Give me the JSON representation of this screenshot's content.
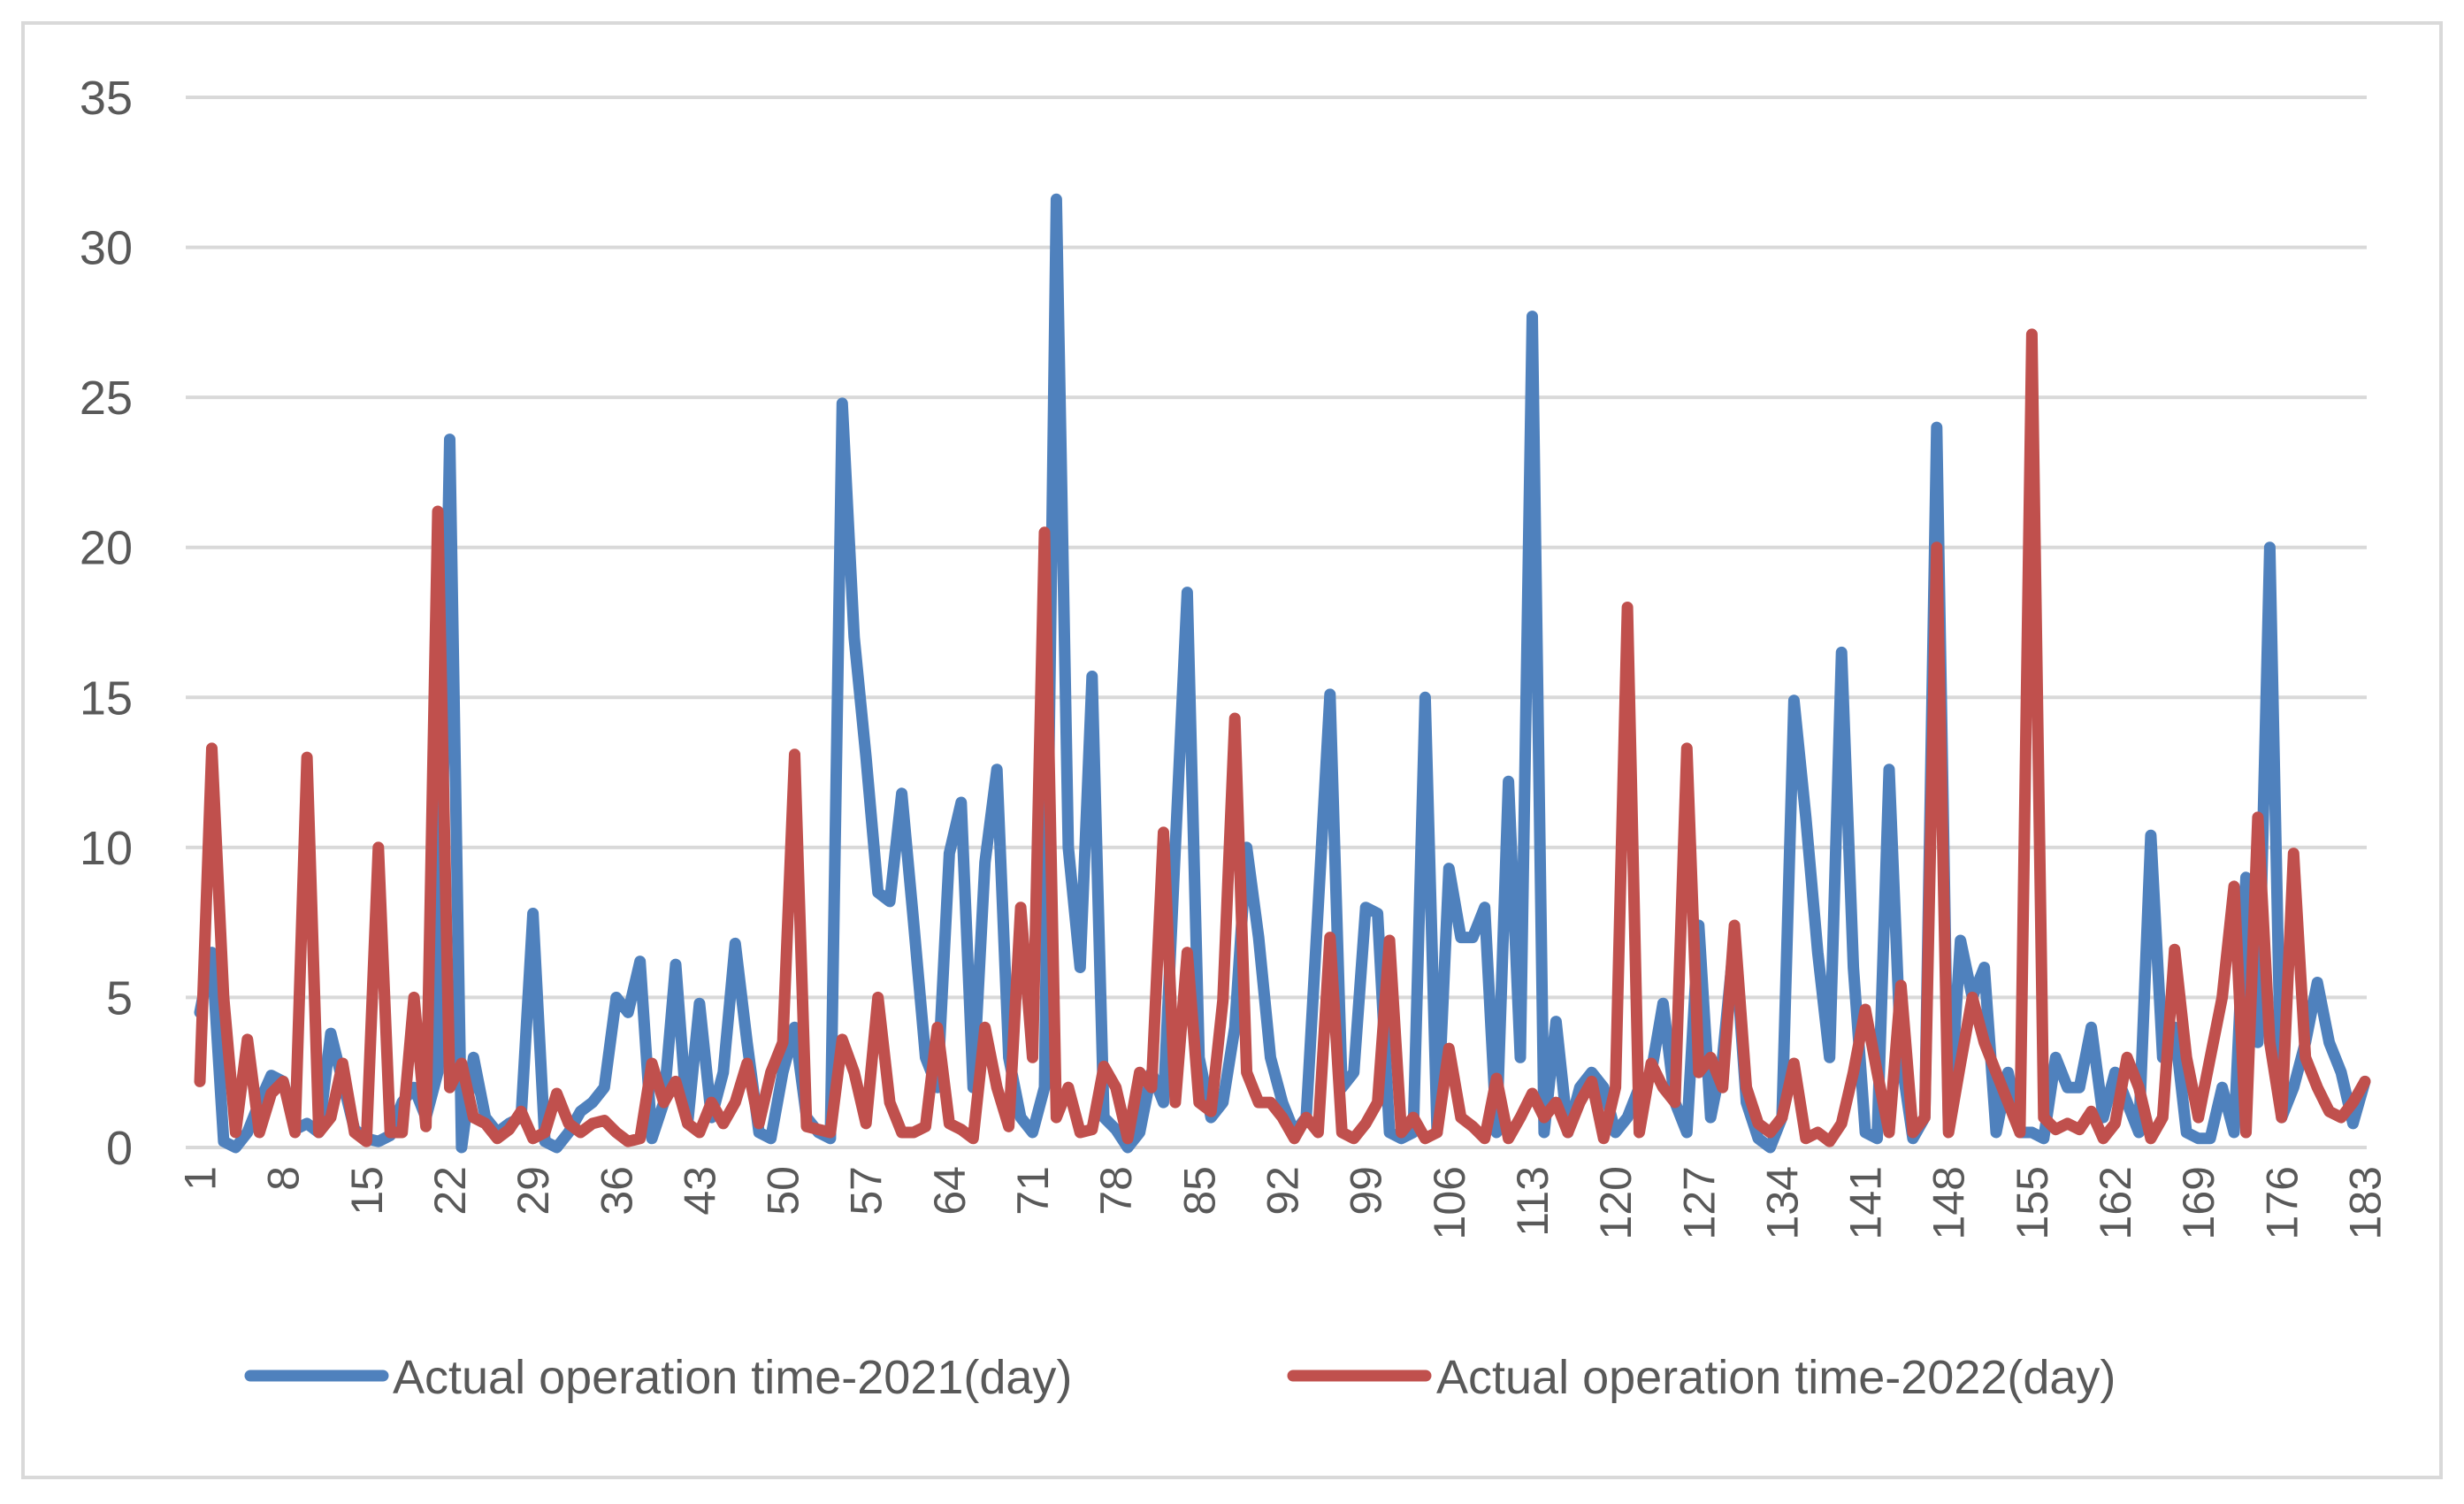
{
  "chart_data": {
    "type": "line",
    "title": "",
    "xlabel": "",
    "ylabel": "",
    "ylim": [
      0,
      35
    ],
    "yticks": [
      "0",
      "5",
      "10",
      "15",
      "20",
      "25",
      "30",
      "35"
    ],
    "ytick_values": [
      0,
      5,
      10,
      15,
      20,
      25,
      30,
      35
    ],
    "xlim": [
      1,
      183
    ],
    "xticks": [
      "1",
      "8",
      "15",
      "22",
      "29",
      "36",
      "43",
      "50",
      "57",
      "64",
      "71",
      "78",
      "85",
      "92",
      "99",
      "106",
      "113",
      "120",
      "127",
      "134",
      "141",
      "148",
      "155",
      "162",
      "169",
      "176",
      "183"
    ],
    "xtick_values": [
      1,
      8,
      15,
      22,
      29,
      36,
      43,
      50,
      57,
      64,
      71,
      78,
      85,
      92,
      99,
      106,
      113,
      120,
      127,
      134,
      141,
      148,
      155,
      162,
      169,
      176,
      183
    ],
    "grid": true,
    "legend_position": "bottom",
    "series": [
      {
        "name": "Actual operation time-2021(day)",
        "color": "#4F81BD",
        "values": [
          4.5,
          6.5,
          0.2,
          0,
          0.5,
          1.5,
          2.4,
          2.2,
          0.6,
          0.8,
          0.5,
          3.8,
          2.2,
          0.6,
          0.3,
          0.2,
          0.4,
          1.5,
          2,
          1,
          2.5,
          23.6,
          0,
          3,
          1,
          0.5,
          0.8,
          1,
          7.8,
          0.2,
          0,
          0.5,
          1.2,
          1.5,
          2,
          5,
          4.5,
          6.2,
          0.3,
          1.5,
          6.1,
          0.8,
          4.8,
          1,
          2.5,
          6.8,
          3.5,
          0.5,
          0.3,
          2.5,
          4,
          1,
          0.5,
          0.3,
          24.8,
          17,
          13,
          8.5,
          8.2,
          11.8,
          7.5,
          3,
          2,
          9.8,
          11.5,
          2,
          9.5,
          12.6,
          3,
          1,
          0.5,
          2,
          31.6,
          10,
          6,
          15.7,
          1,
          0.6,
          0,
          0.5,
          2.5,
          1.5,
          10,
          18.5,
          3,
          1,
          1.5,
          4,
          10,
          7,
          3,
          1.5,
          0.5,
          1,
          8,
          15.1,
          2,
          2.5,
          8,
          7.8,
          0.5,
          0.3,
          0.5,
          15,
          0.5,
          9.3,
          7,
          7,
          8,
          0.5,
          12.2,
          3,
          27.7,
          0.5,
          4.2,
          0.5,
          2,
          2.5,
          2,
          0.5,
          1,
          2,
          2.5,
          4.8,
          1.5,
          0.5,
          7.4,
          1,
          3,
          7,
          1.5,
          0.3,
          0,
          1,
          14.9,
          11,
          6.5,
          3,
          16.5,
          6,
          0.5,
          0.3,
          12.6,
          3,
          0.3,
          1,
          24,
          0.6,
          6.9,
          5,
          6,
          0.5,
          2.5,
          0.5,
          0.5,
          0.3,
          3,
          2,
          2,
          4,
          1,
          2.5,
          1.5,
          0.5,
          10.4,
          3,
          4,
          0.5,
          0.3,
          0.3,
          2,
          0.5,
          9,
          3.5,
          20,
          1,
          2,
          3.5,
          5.5,
          3.5,
          2.5,
          0.8,
          2.2
        ]
      },
      {
        "name": "Actual operation time-2022(day)",
        "color": "#C0504D",
        "values": [
          2.2,
          13.3,
          5,
          0.5,
          3.6,
          0.5,
          1.8,
          2.2,
          0.5,
          13,
          0.5,
          1,
          2.8,
          0.5,
          0.2,
          10,
          0.5,
          0.5,
          5,
          0.7,
          21.2,
          2,
          2.8,
          1,
          0.8,
          0.3,
          0.6,
          1.2,
          0.3,
          0.5,
          1.8,
          0.8,
          0.5,
          0.8,
          0.9,
          0.5,
          0.2,
          0.3,
          2.8,
          1.5,
          2.2,
          0.8,
          0.5,
          1.5,
          0.8,
          1.5,
          2.8,
          0.8,
          2.5,
          3.5,
          13.1,
          0.7,
          0.6,
          0.5,
          3.6,
          2.5,
          0.8,
          5,
          1.5,
          0.5,
          0.5,
          0.7,
          4,
          0.8,
          0.6,
          0.3,
          4,
          2,
          0.7,
          8,
          3,
          20.5,
          1,
          2,
          0.5,
          0.6,
          2.7,
          2,
          0.3,
          2.5,
          2,
          10.5,
          1.5,
          6.5,
          1.5,
          1.2,
          4.9,
          14.3,
          2.5,
          1.5,
          1.5,
          1,
          0.3,
          1,
          0.5,
          7,
          0.5,
          0.3,
          0.8,
          1.5,
          6.9,
          0.5,
          1,
          0.3,
          0.5,
          3.3,
          1,
          0.7,
          0.3,
          2.3,
          0.3,
          1,
          1.8,
          1,
          1.5,
          0.5,
          1.5,
          2.2,
          0.3,
          2,
          18,
          0.5,
          2.8,
          2,
          1.5,
          13.3,
          2.5,
          3,
          2,
          7.4,
          2,
          0.8,
          0.5,
          1,
          2.8,
          0.3,
          0.5,
          0.2,
          0.8,
          2.5,
          4.6,
          2.5,
          0.5,
          5.4,
          0.5,
          1,
          20,
          0.5,
          2.8,
          5,
          3.5,
          2.5,
          1.5,
          0.5,
          27.1,
          1,
          0.6,
          0.8,
          0.6,
          1.2,
          0.3,
          0.8,
          3,
          2,
          0.3,
          1,
          6.6,
          3,
          1,
          3,
          5,
          8.7,
          0.5,
          11,
          3.5,
          1,
          9.8,
          3,
          2,
          1.2,
          1,
          1.5,
          2.2
        ]
      }
    ]
  }
}
